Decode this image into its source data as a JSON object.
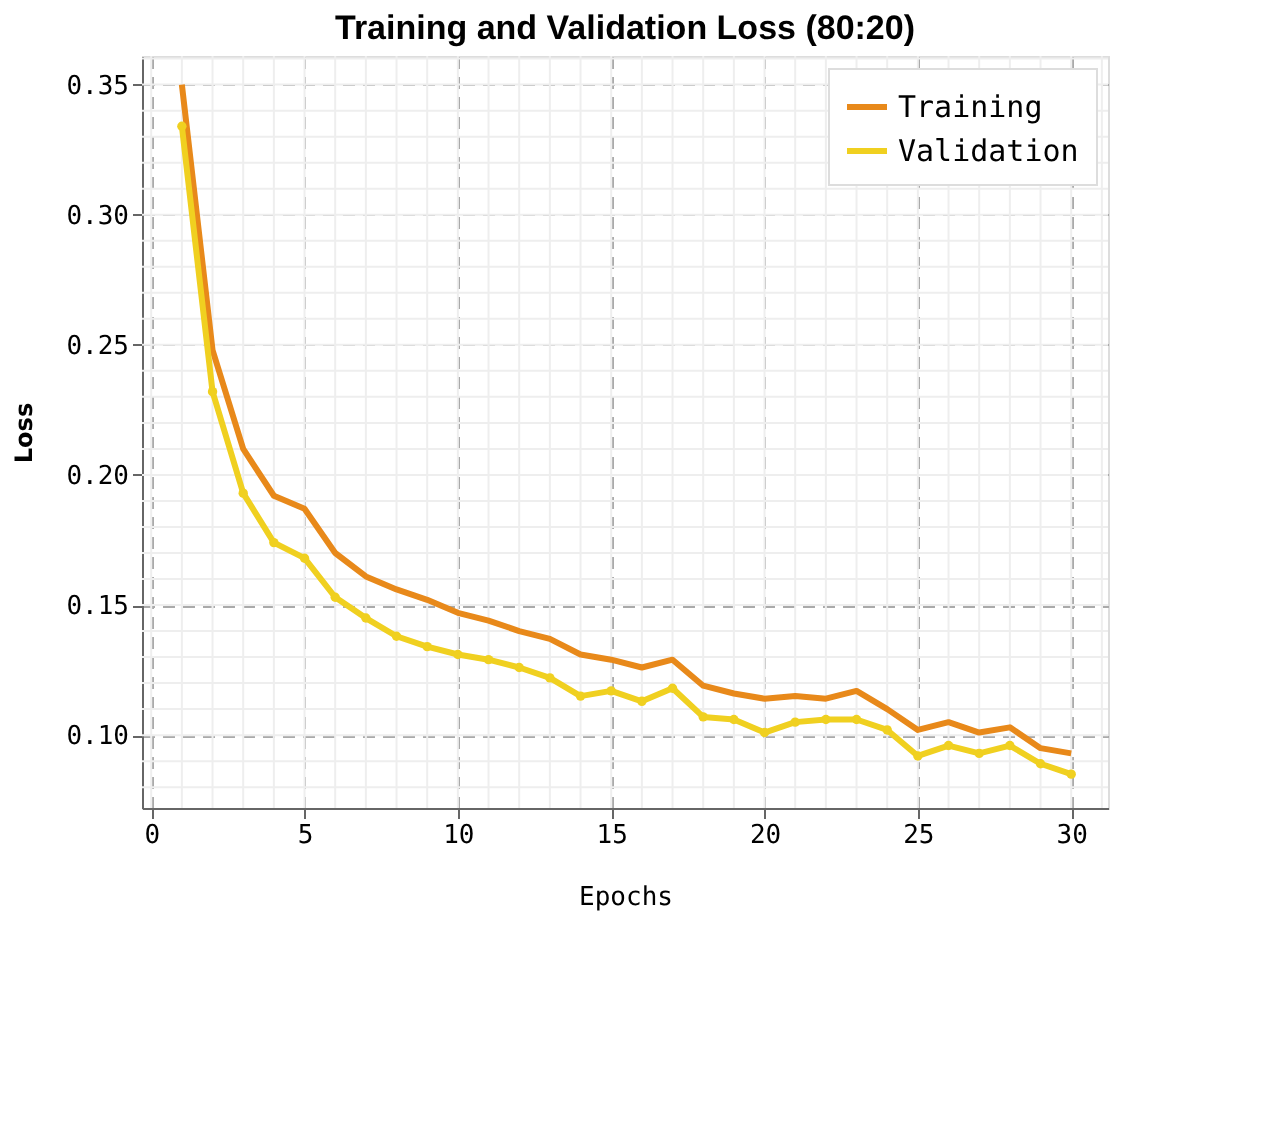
{
  "chart_data": {
    "type": "line",
    "title": "Training and Validation Loss (80:20)",
    "xlabel": "Epochs",
    "ylabel": "Loss",
    "x": [
      1,
      2,
      3,
      4,
      5,
      6,
      7,
      8,
      9,
      10,
      11,
      12,
      13,
      14,
      15,
      16,
      17,
      18,
      19,
      20,
      21,
      22,
      23,
      24,
      25,
      26,
      27,
      28,
      29,
      30
    ],
    "series": [
      {
        "name": "Training",
        "color": "#e8891a",
        "marker": "none",
        "values": [
          0.35,
          0.248,
          0.21,
          0.192,
          0.187,
          0.17,
          0.161,
          0.156,
          0.152,
          0.147,
          0.144,
          0.14,
          0.137,
          0.131,
          0.129,
          0.126,
          0.129,
          0.119,
          0.116,
          0.114,
          0.115,
          0.114,
          0.117,
          0.11,
          0.102,
          0.105,
          0.101,
          0.103,
          0.095,
          0.093
        ]
      },
      {
        "name": "Validation",
        "color": "#f0d020",
        "marker": "circle",
        "values": [
          0.334,
          0.232,
          0.193,
          0.174,
          0.168,
          0.153,
          0.145,
          0.138,
          0.134,
          0.131,
          0.129,
          0.126,
          0.122,
          0.115,
          0.117,
          0.113,
          0.118,
          0.107,
          0.106,
          0.101,
          0.105,
          0.106,
          0.106,
          0.102,
          0.092,
          0.096,
          0.093,
          0.096,
          0.089,
          0.085
        ]
      }
    ],
    "xlim": [
      -0.3,
      31.2
    ],
    "xticks": [
      0,
      5,
      10,
      15,
      20,
      25,
      30
    ],
    "ylim": [
      0.072,
      0.361
    ],
    "yticks": [
      {
        "value": 0.1,
        "label": "0.10"
      },
      0.15,
      {
        "value": 0.2,
        "label": "0.20"
      },
      0.25,
      {
        "value": 0.3,
        "label": "0.30"
      },
      0.35
    ],
    "grid": true,
    "legend": "top right",
    "line_style": "solid"
  }
}
